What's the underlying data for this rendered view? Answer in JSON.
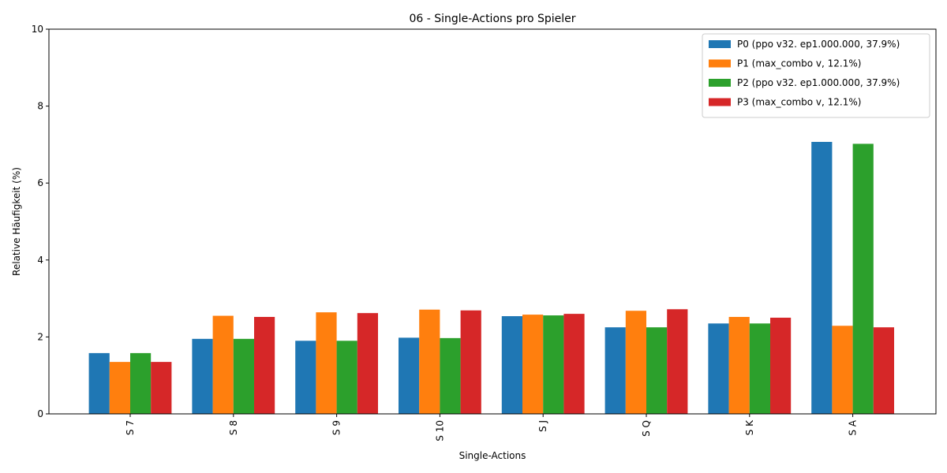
{
  "chart_data": {
    "type": "bar",
    "title": "06 - Single-Actions pro Spieler",
    "xlabel": "Single-Actions",
    "ylabel": "Relative Häufigkeit (%)",
    "ylim": [
      0,
      10
    ],
    "yticks": [
      "0",
      "2",
      "4",
      "6",
      "8",
      "10"
    ],
    "categories": [
      "S 7",
      "S 8",
      "S 9",
      "S 10",
      "S J",
      "S Q",
      "S K",
      "S A"
    ],
    "legend_position": "top-right",
    "grid": false,
    "series": [
      {
        "name": "P0 (ppo v32. ep1.000.000, 37.9%)",
        "color": "#1f77b4",
        "values": [
          1.58,
          1.95,
          1.9,
          1.98,
          2.54,
          2.25,
          2.35,
          7.07
        ]
      },
      {
        "name": "P1 (max_combo v, 12.1%)",
        "color": "#ff7f0e",
        "values": [
          1.35,
          2.55,
          2.64,
          2.71,
          2.58,
          2.68,
          2.52,
          2.29
        ]
      },
      {
        "name": "P2 (ppo v32. ep1.000.000, 37.9%)",
        "color": "#2ca02c",
        "values": [
          1.58,
          1.95,
          1.9,
          1.97,
          2.56,
          2.25,
          2.35,
          7.02
        ]
      },
      {
        "name": "P3 (max_combo v, 12.1%)",
        "color": "#d62728",
        "values": [
          1.35,
          2.52,
          2.62,
          2.69,
          2.6,
          2.72,
          2.5,
          2.25
        ]
      }
    ]
  }
}
